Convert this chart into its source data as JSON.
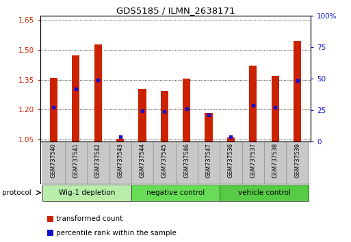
{
  "title": "GDS5185 / ILMN_2638171",
  "samples": [
    "GSM737540",
    "GSM737541",
    "GSM737542",
    "GSM737543",
    "GSM737544",
    "GSM737545",
    "GSM737546",
    "GSM737547",
    "GSM737536",
    "GSM737537",
    "GSM737538",
    "GSM737539"
  ],
  "red_values": [
    1.36,
    1.47,
    1.525,
    1.055,
    1.305,
    1.295,
    1.355,
    1.185,
    1.06,
    1.42,
    1.37,
    1.545
  ],
  "blue_values": [
    1.21,
    1.305,
    1.35,
    1.065,
    1.195,
    1.19,
    1.205,
    1.175,
    1.065,
    1.22,
    1.21,
    1.345
  ],
  "ylim_left": [
    1.04,
    1.67
  ],
  "ylim_right": [
    0,
    100
  ],
  "yticks_left": [
    1.05,
    1.2,
    1.35,
    1.5,
    1.65
  ],
  "yticks_right": [
    0,
    25,
    50,
    75,
    100
  ],
  "groups": [
    {
      "label": "Wig-1 depletion",
      "start": 0,
      "end": 4,
      "color": "#b8eeaa"
    },
    {
      "label": "negative control",
      "start": 4,
      "end": 8,
      "color": "#66dd55"
    },
    {
      "label": "vehicle control",
      "start": 8,
      "end": 12,
      "color": "#55cc44"
    }
  ],
  "bar_color": "#cc2200",
  "dot_color": "#1111cc",
  "bar_width": 0.35,
  "background_color": "#ffffff",
  "plot_bg_color": "#ffffff",
  "label_bg_color": "#c8c8c8",
  "grid_color": "#000000",
  "tick_label_color_left": "#cc2200",
  "tick_label_color_right": "#1111cc",
  "legend_red_label": "transformed count",
  "legend_blue_label": "percentile rank within the sample",
  "protocol_label": "protocol"
}
